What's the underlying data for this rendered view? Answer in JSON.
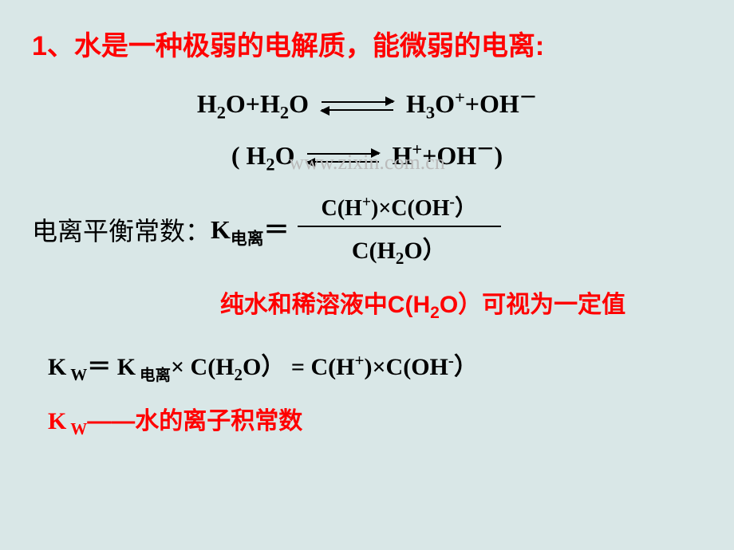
{
  "colors": {
    "background": "#d9e7e7",
    "accent_red": "#ff0000",
    "text_black": "#000000",
    "watermark_gray": "#bbbbbb"
  },
  "title": "1、水是一种极弱的电解质，能微弱的电离:",
  "eq1": {
    "left_a": "H",
    "left_a_sub": "2",
    "left_a_tail": "O+H",
    "left_b_sub": "2",
    "left_b_tail": "O",
    "right_a": "H",
    "right_a_sub": "3",
    "right_a_tail": "O",
    "right_a_sup": "+",
    "right_b": "+OH",
    "right_b_sup": "－"
  },
  "eq2": {
    "open": "(  H",
    "h2o_sub": "2",
    "h2o_tail": "O",
    "right_h": "H",
    "right_h_sup": "+",
    "plus": "+OH",
    "oh_sup": "－",
    "close": ")"
  },
  "k_label_cn": "电离平衡常数：",
  "k_sym": "K",
  "k_sub_cn": "电离",
  "equals": "＝",
  "frac": {
    "num_c1": "C(H",
    "num_c1_sup": "+",
    "num_mid": ")×C(OH",
    "num_c2_sup": "-",
    "num_end": "）",
    "den_c": "C(H",
    "den_sub": "2",
    "den_end": "O）"
  },
  "watermark": "www.zixin.com.cn",
  "note_red_a": "纯水和稀溶液中C(H",
  "note_red_sub": "2",
  "note_red_b": "O）可视为一定值",
  "kw_line": {
    "k": "K",
    "w_sub": "W",
    "eq1": "＝ K",
    "dl_sub": "电离",
    "times": "× C(H",
    "h2o_sub": "2",
    "h2o_end": "O）",
    "eq2": " = C(H",
    "h_sup": "+",
    "mid": ")×C(OH",
    "oh_sup": "-",
    "end": "）"
  },
  "kw_red": {
    "k": "K",
    "w_sub": "W",
    "dash": "——",
    "text": "水的离子积常数"
  }
}
